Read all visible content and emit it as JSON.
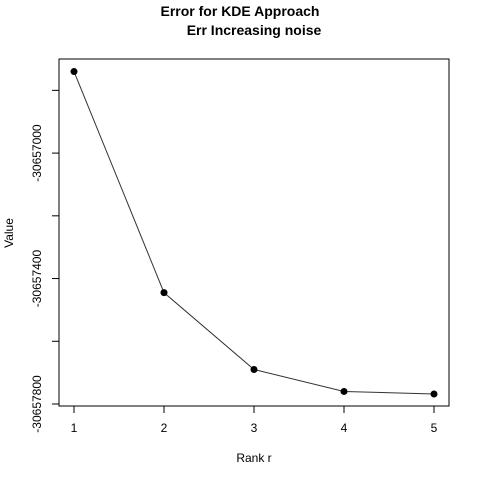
{
  "chart_data": {
    "type": "line",
    "title": "Error for KDE Approach",
    "subtitle": "Err Increasing noise",
    "xlabel": "Rank r",
    "ylabel": "Value",
    "x": [
      1,
      2,
      3,
      4,
      5
    ],
    "series": [
      {
        "values": [
          -30656740,
          -30657445,
          -30657690,
          -30657760,
          -30657768
        ]
      }
    ],
    "xlim": [
      0.9,
      5.1
    ],
    "ylim": [
      -30657800,
      -30656700
    ],
    "x_ticks": [
      1,
      2,
      3,
      4,
      5
    ],
    "y_ticks": [
      -30657800,
      -30657600,
      -30657400,
      -30657200,
      -30657000,
      -30656800
    ],
    "y_tick_labels": [
      "-30657800",
      "",
      "-30657400",
      "",
      "-30657000",
      ""
    ],
    "grid": false,
    "legend": "none"
  }
}
